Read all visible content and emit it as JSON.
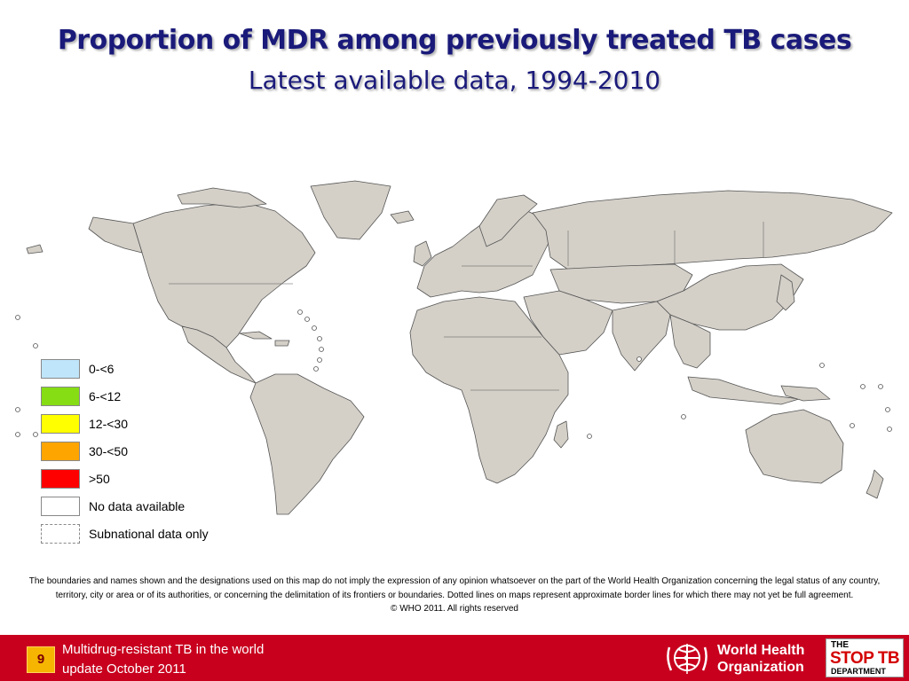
{
  "title": "Proportion of MDR among previously treated TB cases",
  "subtitle": "Latest available data, 1994-2010",
  "map": {
    "land_color": "#d4d0c8",
    "border_color": "#555555"
  },
  "legend": {
    "items": [
      {
        "label": "0-<6",
        "color": "#bfe5fa",
        "style": "solid"
      },
      {
        "label": "6-<12",
        "color": "#86dd14",
        "style": "solid"
      },
      {
        "label": "12-<30",
        "color": "#ffff00",
        "style": "solid"
      },
      {
        "label": "30-<50",
        "color": "#ffa500",
        "style": "solid"
      },
      {
        "label": ">50",
        "color": "#ff0000",
        "style": "solid"
      },
      {
        "label": "No data available",
        "color": "#ffffff",
        "style": "solid"
      },
      {
        "label": "Subnational data only",
        "color": "#ffffff",
        "style": "dashed"
      }
    ]
  },
  "disclaimer": {
    "text": "The boundaries and names shown and the designations used on this map do not imply the expression of any opinion whatsoever on the part of the World Health Organization concerning the legal status of any country, territory, city or area or of its authorities, or concerning the delimitation of its frontiers or boundaries.  Dotted lines on maps represent approximate border lines for which there may not yet be full agreement.",
    "copyright": "© WHO 2011. All rights reserved"
  },
  "footer": {
    "page_number": "9",
    "line1": "Multidrug-resistant TB in the world",
    "line2": "update October 2011",
    "who_line1": "World Health",
    "who_line2": "Organization",
    "stoptb_the": "THE",
    "stoptb_main": "STOP TB",
    "stoptb_dept": "DEPARTMENT",
    "color": "#c8001e",
    "badge_color": "#f6b500"
  }
}
